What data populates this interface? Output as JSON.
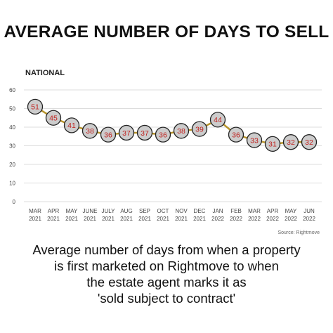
{
  "header": {
    "title": "AVERAGE NUMBER OF DAYS TO SELL"
  },
  "footer": {
    "caption_lines": [
      "Average number of days from when a property",
      "is first marketed on Rightmove to when",
      "the estate agent marks it as",
      "'sold subject to contract'"
    ]
  },
  "chart_data": {
    "type": "line",
    "subtitle": "NATIONAL",
    "source": "Source: Rightmove",
    "categories": [
      [
        "MAR",
        "2021"
      ],
      [
        "APR",
        "2021"
      ],
      [
        "MAY",
        "2021"
      ],
      [
        "JUNE",
        "2021"
      ],
      [
        "JULY",
        "2021"
      ],
      [
        "AUG",
        "2021"
      ],
      [
        "SEP",
        "2021"
      ],
      [
        "OCT",
        "2021"
      ],
      [
        "NOV",
        "2021"
      ],
      [
        "DEC",
        "2021"
      ],
      [
        "JAN",
        "2022"
      ],
      [
        "FEB",
        "2022"
      ],
      [
        "MAR",
        "2022"
      ],
      [
        "APR",
        "2022"
      ],
      [
        "MAY",
        "2022"
      ],
      [
        "JUN",
        "2022"
      ]
    ],
    "values": [
      51,
      45,
      41,
      38,
      36,
      37,
      37,
      36,
      38,
      39,
      44,
      36,
      33,
      31,
      32,
      32
    ],
    "ylim": [
      0,
      60
    ],
    "yticks": [
      0,
      10,
      20,
      30,
      40,
      50,
      60
    ],
    "grid": "horizontal",
    "colors": {
      "line": "#b8942c",
      "marker_fill": "#cccccc",
      "marker_stroke": "#222222",
      "label": "#c0221f",
      "grid": "#dddddd",
      "axis_text": "#444444"
    }
  }
}
